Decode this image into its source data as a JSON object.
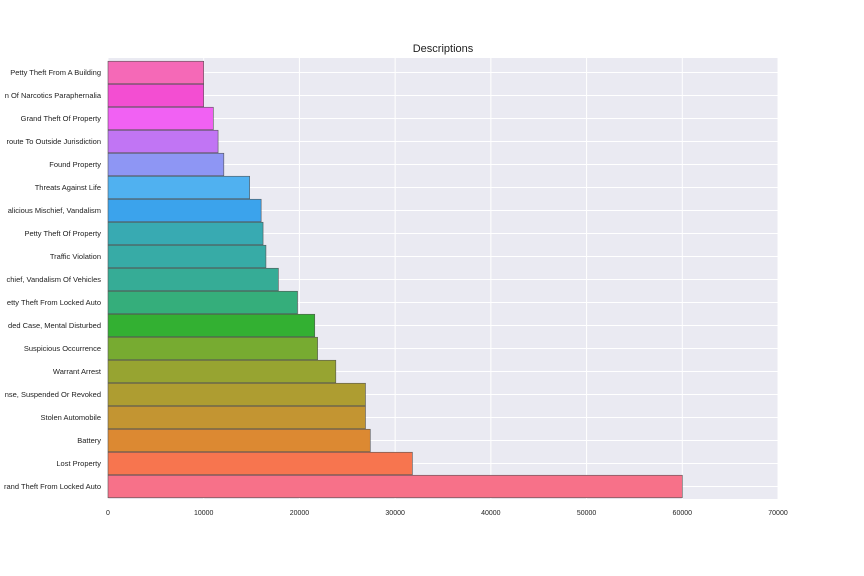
{
  "chart_data": {
    "type": "bar",
    "orientation": "horizontal",
    "title": "Descriptions",
    "xlabel": "",
    "ylabel": "",
    "xlim": [
      0,
      70000
    ],
    "xticks": [
      0,
      10000,
      20000,
      30000,
      40000,
      50000,
      60000,
      70000
    ],
    "grid": true,
    "categories": [
      "Grand Theft From Locked Auto",
      "Lost Property",
      "Battery",
      "Stolen Automobile",
      "Driving Without License, Suspended Or Revoked",
      "Warrant Arrest",
      "Suspicious Occurrence",
      "Aided Case, Mental Disturbed",
      "Petty Theft From Locked Auto",
      "Malicious Mischief, Vandalism Of Vehicles",
      "Traffic Violation",
      "Petty Theft Of Property",
      "Malicious Mischief, Vandalism",
      "Threats Against Life",
      "Found Property",
      "Enroute To Outside Jurisdiction",
      "Grand Theft Of Property",
      "Possession Of Narcotics Paraphernalia",
      "Petty Theft From A Building"
    ],
    "values": [
      60000,
      31800,
      27400,
      26900,
      26900,
      23800,
      21900,
      21600,
      19800,
      17800,
      16500,
      16200,
      16000,
      14800,
      12100,
      11500,
      11000,
      10000,
      10000
    ],
    "colors": [
      "#f77189",
      "#f7754f",
      "#dc8932",
      "#c39532",
      "#ae9d31",
      "#97a431",
      "#77ab31",
      "#33b032",
      "#35ae7b",
      "#36ac96",
      "#37aba6",
      "#38aab2",
      "#3ba3ec",
      "#50b1f0",
      "#8e96f4",
      "#c175f4",
      "#f161f3",
      "#f34ed2",
      "#f569b7"
    ],
    "visible_labels": [
      "rand Theft From Locked Auto",
      "Lost Property",
      "Battery",
      "Stolen Automobile",
      "nse, Suspended Or Revoked",
      "Warrant Arrest",
      "Suspicious Occurrence",
      "ded Case, Mental Disturbed",
      "etty Theft From Locked Auto",
      "chief, Vandalism Of Vehicles",
      "Traffic Violation",
      "Petty Theft Of Property",
      "alicious Mischief, Vandalism",
      "Threats Against Life",
      "Found Property",
      "route To Outside Jurisdiction",
      "Grand Theft Of Property",
      "n Of Narcotics Paraphernalia",
      "Petty Theft From A Building"
    ]
  },
  "style": {
    "plot_background": "#eaeaf2",
    "grid_color": "#ffffff",
    "bar_edge": "#555555"
  }
}
